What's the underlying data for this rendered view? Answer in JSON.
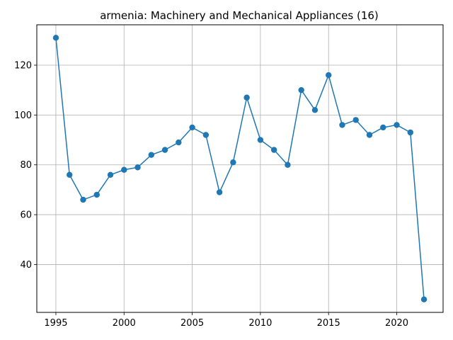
{
  "chart_data": {
    "type": "line",
    "title": "armenia: Machinery and Mechanical Appliances (16)",
    "xlabel": "",
    "ylabel": "",
    "x": [
      1995,
      1996,
      1997,
      1998,
      1999,
      2000,
      2001,
      2002,
      2003,
      2004,
      2005,
      2006,
      2007,
      2008,
      2009,
      2010,
      2011,
      2012,
      2013,
      2014,
      2015,
      2016,
      2017,
      2018,
      2019,
      2020,
      2021,
      2022
    ],
    "series": [
      {
        "values": [
          131,
          76,
          66,
          68,
          76,
          78,
          79,
          84,
          86,
          89,
          95,
          92,
          69,
          81,
          107,
          90,
          86,
          80,
          110,
          102,
          116,
          96,
          98,
          92,
          95,
          96,
          93,
          26
        ],
        "color": "#1f77b4",
        "marker": "circle"
      }
    ],
    "xlim": [
      1993.6,
      2023.4
    ],
    "ylim": [
      20.8,
      136.2
    ],
    "xticks": [
      1995,
      2000,
      2005,
      2010,
      2015,
      2020
    ],
    "yticks": [
      40,
      60,
      80,
      100,
      120
    ],
    "grid": true,
    "legend": "none"
  }
}
